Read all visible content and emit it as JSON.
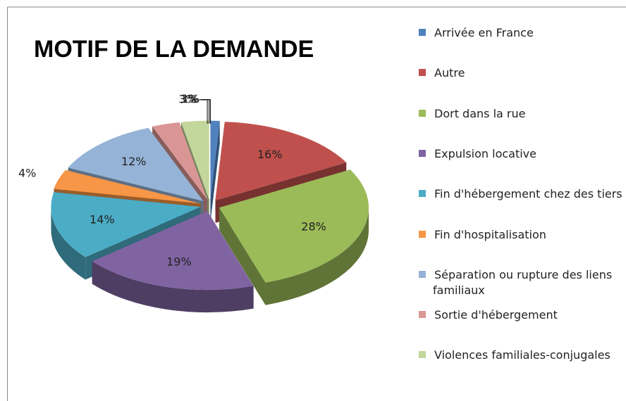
{
  "chart_data": {
    "type": "pie",
    "title": "MOTIF DE LA DEMANDE",
    "categories": [
      "Arrivée en France",
      "Autre",
      "Dort dans la rue",
      "Expulsion locative",
      "Fin d'hébergement chez des tiers",
      "Fin d'hospitalisation",
      "Séparation ou rupture des liens familiaux",
      "Sortie d'hébergement",
      "Violences familiales-conjugales"
    ],
    "values": [
      1,
      16,
      28,
      19,
      14,
      4,
      12,
      3,
      3
    ],
    "value_labels": [
      "1%",
      "16%",
      "28%",
      "19%",
      "14%",
      "4%",
      "12%",
      "3%",
      "3%"
    ],
    "colors": [
      "#4f81bd",
      "#c0504d",
      "#9bbb59",
      "#8064a2",
      "#4bacc6",
      "#f79646",
      "#95b3d7",
      "#d99694",
      "#c3d69b"
    ],
    "legend": "right"
  }
}
